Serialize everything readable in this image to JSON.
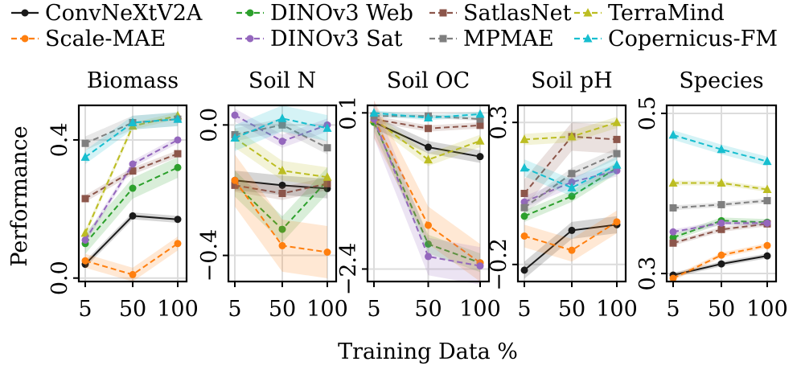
{
  "chart_data": {
    "type": "line",
    "x": [
      5,
      50,
      100
    ],
    "x_tick_labels": [
      "5",
      "50",
      "100"
    ],
    "xlabel": "Training Data %",
    "ylabel": "Performance",
    "legend_location": "top",
    "series_styles": [
      {
        "name": "ConvNeXtV2A",
        "color": "#1a1a1a",
        "dash": "solid",
        "marker": "circle"
      },
      {
        "name": "DINOv3 Web",
        "color": "#2ca02c",
        "dash": "dashed",
        "marker": "circle"
      },
      {
        "name": "SatlasNet",
        "color": "#8c564b",
        "dash": "dashed",
        "marker": "square"
      },
      {
        "name": "TerraMind",
        "color": "#bcbd22",
        "dash": "dashed",
        "marker": "triangle"
      },
      {
        "name": "Scale-MAE",
        "color": "#ff7f0e",
        "dash": "dashed",
        "marker": "circle"
      },
      {
        "name": "DINOv3 Sat",
        "color": "#9467bd",
        "dash": "dashed",
        "marker": "circle"
      },
      {
        "name": "MPMAE",
        "color": "#7f7f7f",
        "dash": "dashed",
        "marker": "square"
      },
      {
        "name": "Copernicus-FM",
        "color": "#17becf",
        "dash": "dashed",
        "marker": "triangle"
      }
    ],
    "panels": [
      {
        "title": "Biomass",
        "ylim": [
          -0.01,
          0.5
        ],
        "yticks": [
          0.0,
          0.4
        ],
        "ytick_labels": [
          "0.0",
          "0.4"
        ],
        "series": [
          {
            "name": "ConvNeXtV2A",
            "values": [
              0.04,
              0.18,
              0.17
            ],
            "band": 0.01
          },
          {
            "name": "DINOv3 Web",
            "values": [
              0.1,
              0.26,
              0.32
            ],
            "band": 0.03
          },
          {
            "name": "SatlasNet",
            "values": [
              0.23,
              0.31,
              0.36
            ],
            "band": 0.01
          },
          {
            "name": "TerraMind",
            "values": [
              0.13,
              0.44,
              0.47
            ],
            "band": 0.01
          },
          {
            "name": "Scale-MAE",
            "values": [
              0.05,
              0.01,
              0.1
            ],
            "band": 0.02
          },
          {
            "name": "DINOv3 Sat",
            "values": [
              0.11,
              0.33,
              0.4
            ],
            "band": 0.01
          },
          {
            "name": "MPMAE",
            "values": [
              0.39,
              0.45,
              0.46
            ],
            "band": 0.02
          },
          {
            "name": "Copernicus-FM",
            "values": [
              0.35,
              0.45,
              0.46
            ],
            "band": 0.02
          }
        ]
      },
      {
        "title": "Soil N",
        "ylim": [
          -0.48,
          0.06
        ],
        "yticks": [
          0.0,
          -0.4
        ],
        "ytick_labels": [
          "0.0",
          "−0.4"
        ],
        "series": [
          {
            "name": "ConvNeXtV2A",
            "values": [
              -0.17,
              -0.185,
              -0.195
            ],
            "band": 0.03
          },
          {
            "name": "DINOv3 Web",
            "values": [
              -0.18,
              -0.32,
              -0.17
            ],
            "band": 0.04
          },
          {
            "name": "SatlasNet",
            "values": [
              -0.185,
              -0.21,
              -0.18
            ],
            "band": 0.02
          },
          {
            "name": "TerraMind",
            "values": [
              -0.04,
              -0.14,
              -0.16
            ],
            "band": 0.03
          },
          {
            "name": "Scale-MAE",
            "values": [
              -0.17,
              -0.37,
              -0.39
            ],
            "band": 0.08
          },
          {
            "name": "DINOv3 Sat",
            "values": [
              0.03,
              -0.05,
              0.0
            ],
            "band": 0.02
          },
          {
            "name": "MPMAE",
            "values": [
              -0.03,
              0.0,
              -0.07
            ],
            "band": 0.02
          },
          {
            "name": "Copernicus-FM",
            "values": [
              -0.04,
              0.02,
              -0.01
            ],
            "band": 0.04
          }
        ]
      },
      {
        "title": "Soil OC",
        "ylim": [
          -2.6,
          0.22
        ],
        "yticks": [
          0.1,
          -2.4
        ],
        "ytick_labels": [
          "0.1",
          "−2.4"
        ],
        "series": [
          {
            "name": "ConvNeXtV2A",
            "values": [
              -0.05,
              -0.45,
              -0.6
            ],
            "band": 0.1
          },
          {
            "name": "DINOv3 Web",
            "values": [
              -0.05,
              -2.0,
              -2.3
            ],
            "band": 0.15
          },
          {
            "name": "SatlasNet",
            "values": [
              0.0,
              -0.15,
              -0.1
            ],
            "band": 0.05
          },
          {
            "name": "TerraMind",
            "values": [
              0.0,
              -0.65,
              -0.35
            ],
            "band": 0.1
          },
          {
            "name": "Scale-MAE",
            "values": [
              0.0,
              -1.7,
              -2.3
            ],
            "band": 0.3
          },
          {
            "name": "DINOv3 Sat",
            "values": [
              0.0,
              -2.2,
              -2.35
            ],
            "band": 0.3
          },
          {
            "name": "MPMAE",
            "values": [
              0.05,
              0.05,
              0.0
            ],
            "band": 0.03
          },
          {
            "name": "Copernicus-FM",
            "values": [
              0.1,
              0.02,
              0.08
            ],
            "band": 0.04
          }
        ]
      },
      {
        "title": "Soil pH",
        "ylim": [
          -0.26,
          0.36
        ],
        "yticks": [
          0.3,
          -0.2
        ],
        "ytick_labels": [
          "0.3",
          "−0.2"
        ],
        "series": [
          {
            "name": "ConvNeXtV2A",
            "values": [
              -0.22,
              -0.08,
              -0.06
            ],
            "band": 0.03
          },
          {
            "name": "DINOv3 Web",
            "values": [
              -0.03,
              0.04,
              0.14
            ],
            "band": 0.02
          },
          {
            "name": "SatlasNet",
            "values": [
              0.05,
              0.25,
              0.24
            ],
            "band": 0.05
          },
          {
            "name": "TerraMind",
            "values": [
              0.24,
              0.25,
              0.3
            ],
            "band": 0.02
          },
          {
            "name": "Scale-MAE",
            "values": [
              -0.1,
              -0.15,
              -0.05
            ],
            "band": 0.04
          },
          {
            "name": "DINOv3 Sat",
            "values": [
              0.02,
              0.09,
              0.13
            ],
            "band": 0.02
          },
          {
            "name": "MPMAE",
            "values": [
              0.0,
              0.12,
              0.19
            ],
            "band": 0.02
          },
          {
            "name": "Copernicus-FM",
            "values": [
              0.14,
              0.07,
              0.15
            ],
            "band": 0.03
          }
        ]
      },
      {
        "title": "Species",
        "ylim": [
          0.29,
          0.51
        ],
        "yticks": [
          0.5,
          0.3
        ],
        "ytick_labels": [
          "0.5",
          "0.3"
        ],
        "series": [
          {
            "name": "ConvNeXtV2A",
            "values": [
              0.298,
              0.312,
              0.322
            ],
            "band": 0.003
          },
          {
            "name": "DINOv3 Web",
            "values": [
              0.345,
              0.366,
              0.364
            ],
            "band": 0.004
          },
          {
            "name": "SatlasNet",
            "values": [
              0.338,
              0.355,
              0.362
            ],
            "band": 0.003
          },
          {
            "name": "TerraMind",
            "values": [
              0.413,
              0.413,
              0.405
            ],
            "band": 0.003
          },
          {
            "name": "Scale-MAE",
            "values": [
              0.294,
              0.323,
              0.335
            ],
            "band": 0.003
          },
          {
            "name": "DINOv3 Sat",
            "values": [
              0.352,
              0.363,
              0.363
            ],
            "band": 0.003
          },
          {
            "name": "MPMAE",
            "values": [
              0.382,
              0.386,
              0.391
            ],
            "band": 0.003
          },
          {
            "name": "Copernicus-FM",
            "values": [
              0.473,
              0.455,
              0.44
            ],
            "band": 0.006
          }
        ]
      }
    ]
  }
}
